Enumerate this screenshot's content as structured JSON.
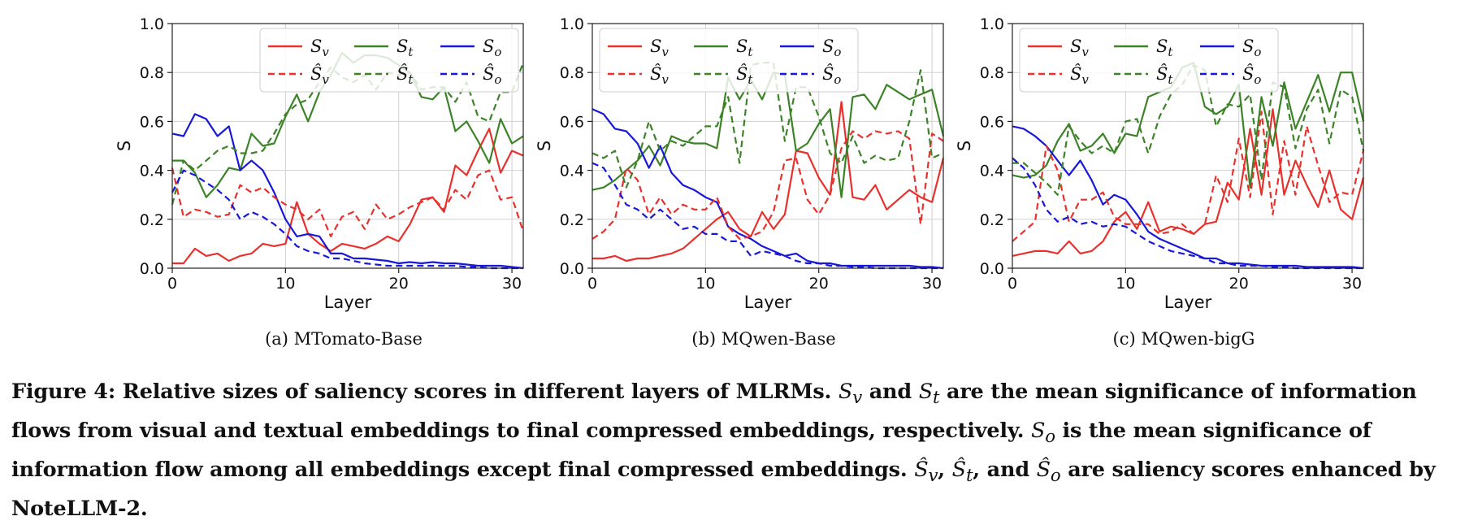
{
  "colors": {
    "v": "#e8312c",
    "t": "#3c8328",
    "o": "#1818d6"
  },
  "chart_data": [
    {
      "type": "line",
      "subcaption": "(a)  MTomato-Base",
      "xlabel": "Layer",
      "ylabel": "S",
      "xlim": [
        0,
        31
      ],
      "ylim": [
        0.0,
        1.0
      ],
      "xticks": [
        0,
        10,
        20,
        30
      ],
      "yticks": [
        "0.0",
        "0.2",
        "0.4",
        "0.6",
        "0.8",
        "1.0"
      ],
      "legend": [
        "S_v",
        "S_t",
        "S_o",
        "Ŝ_v",
        "Ŝ_t",
        "Ŝ_o"
      ],
      "series": [
        {
          "key": "v",
          "dashed": false,
          "name": "Sv",
          "values": [
            0.02,
            0.02,
            0.08,
            0.05,
            0.06,
            0.03,
            0.05,
            0.06,
            0.1,
            0.09,
            0.1,
            0.27,
            0.14,
            0.1,
            0.07,
            0.1,
            0.09,
            0.08,
            0.1,
            0.13,
            0.11,
            0.18,
            0.28,
            0.29,
            0.23,
            0.42,
            0.38,
            0.48,
            0.57,
            0.39,
            0.48,
            0.46
          ]
        },
        {
          "key": "t",
          "dashed": false,
          "name": "St",
          "values": [
            0.44,
            0.44,
            0.39,
            0.29,
            0.34,
            0.41,
            0.4,
            0.55,
            0.5,
            0.51,
            0.62,
            0.71,
            0.6,
            0.72,
            0.79,
            0.88,
            0.84,
            0.87,
            0.87,
            0.86,
            0.83,
            0.8,
            0.7,
            0.69,
            0.74,
            0.56,
            0.6,
            0.52,
            0.43,
            0.61,
            0.51,
            0.54
          ]
        },
        {
          "key": "o",
          "dashed": false,
          "name": "So",
          "values": [
            0.55,
            0.54,
            0.63,
            0.61,
            0.54,
            0.58,
            0.4,
            0.44,
            0.4,
            0.31,
            0.2,
            0.13,
            0.14,
            0.13,
            0.06,
            0.06,
            0.04,
            0.04,
            0.035,
            0.03,
            0.02,
            0.025,
            0.02,
            0.025,
            0.02,
            0.02,
            0.015,
            0.01,
            0.01,
            0.01,
            0.005,
            0.0
          ]
        },
        {
          "key": "v",
          "dashed": true,
          "name": "Ŝv",
          "values": [
            0.41,
            0.21,
            0.24,
            0.23,
            0.21,
            0.22,
            0.34,
            0.31,
            0.33,
            0.29,
            0.26,
            0.24,
            0.2,
            0.24,
            0.13,
            0.21,
            0.23,
            0.16,
            0.26,
            0.2,
            0.22,
            0.25,
            0.27,
            0.29,
            0.24,
            0.32,
            0.28,
            0.38,
            0.4,
            0.28,
            0.29,
            0.15
          ]
        },
        {
          "key": "t",
          "dashed": true,
          "name": "Ŝt",
          "values": [
            0.26,
            0.44,
            0.4,
            0.44,
            0.48,
            0.5,
            0.47,
            0.47,
            0.48,
            0.55,
            0.63,
            0.67,
            0.69,
            0.76,
            0.82,
            0.78,
            0.76,
            0.79,
            0.73,
            0.8,
            0.79,
            0.8,
            0.73,
            0.74,
            0.74,
            0.68,
            0.76,
            0.62,
            0.6,
            0.72,
            0.72,
            0.84
          ]
        },
        {
          "key": "o",
          "dashed": true,
          "name": "Ŝo",
          "values": [
            0.31,
            0.4,
            0.38,
            0.35,
            0.32,
            0.28,
            0.2,
            0.23,
            0.21,
            0.18,
            0.14,
            0.09,
            0.07,
            0.06,
            0.04,
            0.04,
            0.03,
            0.02,
            0.015,
            0.01,
            0.01,
            0.01,
            0.01,
            0.01,
            0.01,
            0.01,
            0.005,
            0.005,
            0.0,
            0.0,
            0.0,
            0.0
          ]
        }
      ]
    },
    {
      "type": "line",
      "subcaption": "(b)  MQwen-Base",
      "xlabel": "Layer",
      "ylabel": "S",
      "xlim": [
        0,
        31
      ],
      "ylim": [
        0.0,
        1.0
      ],
      "xticks": [
        0,
        10,
        20,
        30
      ],
      "yticks": [
        "0.0",
        "0.2",
        "0.4",
        "0.6",
        "0.8",
        "1.0"
      ],
      "legend": [
        "S_v",
        "S_t",
        "S_o",
        "Ŝ_v",
        "Ŝ_t",
        "Ŝ_o"
      ],
      "series": [
        {
          "key": "v",
          "dashed": false,
          "name": "Sv",
          "values": [
            0.04,
            0.04,
            0.05,
            0.03,
            0.04,
            0.04,
            0.05,
            0.06,
            0.08,
            0.12,
            0.16,
            0.2,
            0.23,
            0.16,
            0.13,
            0.23,
            0.16,
            0.22,
            0.48,
            0.47,
            0.37,
            0.3,
            0.68,
            0.29,
            0.28,
            0.34,
            0.24,
            0.28,
            0.32,
            0.29,
            0.27,
            0.45
          ]
        },
        {
          "key": "t",
          "dashed": false,
          "name": "St",
          "values": [
            0.32,
            0.33,
            0.36,
            0.4,
            0.44,
            0.5,
            0.42,
            0.54,
            0.52,
            0.51,
            0.51,
            0.49,
            0.78,
            0.69,
            0.77,
            0.69,
            0.8,
            0.79,
            0.48,
            0.51,
            0.59,
            0.65,
            0.29,
            0.7,
            0.71,
            0.65,
            0.75,
            0.72,
            0.69,
            0.71,
            0.73,
            0.54
          ]
        },
        {
          "key": "o",
          "dashed": false,
          "name": "So",
          "values": [
            0.65,
            0.63,
            0.57,
            0.56,
            0.51,
            0.41,
            0.5,
            0.39,
            0.34,
            0.32,
            0.29,
            0.27,
            0.17,
            0.14,
            0.12,
            0.09,
            0.07,
            0.05,
            0.06,
            0.03,
            0.02,
            0.02,
            0.01,
            0.01,
            0.01,
            0.01,
            0.01,
            0.01,
            0.01,
            0.005,
            0.005,
            0.0
          ]
        },
        {
          "key": "v",
          "dashed": true,
          "name": "Ŝv",
          "values": [
            0.12,
            0.15,
            0.2,
            0.41,
            0.36,
            0.22,
            0.29,
            0.22,
            0.26,
            0.24,
            0.24,
            0.29,
            0.17,
            0.12,
            0.13,
            0.15,
            0.23,
            0.44,
            0.45,
            0.28,
            0.22,
            0.3,
            0.49,
            0.56,
            0.53,
            0.56,
            0.55,
            0.56,
            0.53,
            0.18,
            0.55,
            0.52
          ]
        },
        {
          "key": "t",
          "dashed": true,
          "name": "Ŝt",
          "values": [
            0.47,
            0.45,
            0.48,
            0.33,
            0.44,
            0.6,
            0.48,
            0.52,
            0.5,
            0.54,
            0.58,
            0.58,
            0.7,
            0.43,
            0.83,
            0.84,
            0.84,
            0.52,
            0.74,
            0.74,
            0.62,
            0.47,
            0.43,
            0.54,
            0.43,
            0.46,
            0.44,
            0.45,
            0.6,
            0.81,
            0.45,
            0.47
          ]
        },
        {
          "key": "o",
          "dashed": true,
          "name": "Ŝo",
          "values": [
            0.43,
            0.41,
            0.34,
            0.26,
            0.24,
            0.2,
            0.24,
            0.2,
            0.16,
            0.17,
            0.14,
            0.14,
            0.11,
            0.11,
            0.05,
            0.07,
            0.06,
            0.05,
            0.03,
            0.02,
            0.02,
            0.01,
            0.01,
            0.005,
            0.005,
            0.0,
            0.0,
            0.0,
            0.0,
            0.0,
            0.0,
            0.0
          ]
        }
      ]
    },
    {
      "type": "line",
      "subcaption": "(c)  MQwen-bigG",
      "xlabel": "Layer",
      "ylabel": "S",
      "xlim": [
        0,
        31
      ],
      "ylim": [
        0.0,
        1.0
      ],
      "xticks": [
        0,
        10,
        20,
        30
      ],
      "yticks": [
        "0.0",
        "0.2",
        "0.4",
        "0.6",
        "0.8",
        "1.0"
      ],
      "legend": [
        "S_v",
        "S_t",
        "S_o",
        "Ŝ_v",
        "Ŝ_t",
        "Ŝ_o"
      ],
      "series": [
        {
          "key": "v",
          "dashed": false,
          "name": "Sv",
          "values": [
            0.05,
            0.06,
            0.07,
            0.07,
            0.06,
            0.11,
            0.06,
            0.07,
            0.11,
            0.19,
            0.23,
            0.16,
            0.27,
            0.15,
            0.17,
            0.16,
            0.14,
            0.18,
            0.19,
            0.35,
            0.28,
            0.57,
            0.3,
            0.65,
            0.3,
            0.44,
            0.34,
            0.25,
            0.4,
            0.24,
            0.2,
            0.37
          ]
        },
        {
          "key": "t",
          "dashed": false,
          "name": "St",
          "values": [
            0.38,
            0.37,
            0.38,
            0.42,
            0.52,
            0.59,
            0.48,
            0.5,
            0.55,
            0.47,
            0.55,
            0.54,
            0.7,
            0.72,
            0.74,
            0.82,
            0.84,
            0.66,
            0.63,
            0.66,
            0.75,
            0.33,
            0.7,
            0.5,
            0.76,
            0.57,
            0.68,
            0.79,
            0.64,
            0.8,
            0.8,
            0.6
          ]
        },
        {
          "key": "o",
          "dashed": false,
          "name": "So",
          "values": [
            0.58,
            0.57,
            0.54,
            0.5,
            0.44,
            0.38,
            0.44,
            0.36,
            0.26,
            0.3,
            0.28,
            0.22,
            0.15,
            0.12,
            0.1,
            0.08,
            0.06,
            0.04,
            0.04,
            0.02,
            0.02,
            0.015,
            0.01,
            0.01,
            0.01,
            0.01,
            0.005,
            0.005,
            0.005,
            0.005,
            0.005,
            0.0
          ]
        },
        {
          "key": "v",
          "dashed": true,
          "name": "Ŝv",
          "values": [
            0.11,
            0.15,
            0.19,
            0.5,
            0.4,
            0.19,
            0.28,
            0.28,
            0.31,
            0.21,
            0.18,
            0.18,
            0.18,
            0.14,
            0.15,
            0.18,
            0.14,
            0.18,
            0.38,
            0.27,
            0.53,
            0.29,
            0.64,
            0.22,
            0.52,
            0.3,
            0.58,
            0.42,
            0.27,
            0.31,
            0.3,
            0.48
          ]
        },
        {
          "key": "t",
          "dashed": true,
          "name": "Ŝt",
          "values": [
            0.43,
            0.43,
            0.39,
            0.35,
            0.3,
            0.58,
            0.52,
            0.47,
            0.5,
            0.47,
            0.6,
            0.61,
            0.47,
            0.62,
            0.71,
            0.75,
            0.83,
            0.81,
            0.58,
            0.67,
            0.66,
            0.71,
            0.36,
            0.76,
            0.74,
            0.49,
            0.65,
            0.73,
            0.51,
            0.73,
            0.7,
            0.48
          ]
        },
        {
          "key": "o",
          "dashed": true,
          "name": "Ŝo",
          "values": [
            0.45,
            0.41,
            0.34,
            0.24,
            0.19,
            0.21,
            0.18,
            0.19,
            0.17,
            0.18,
            0.17,
            0.14,
            0.11,
            0.09,
            0.07,
            0.06,
            0.05,
            0.04,
            0.02,
            0.02,
            0.01,
            0.01,
            0.01,
            0.005,
            0.005,
            0.0,
            0.0,
            0.0,
            0.0,
            0.0,
            0.0,
            0.0
          ]
        }
      ]
    }
  ],
  "caption": {
    "text1": "Figure 4: Relative sizes of saliency scores in different layers of MLRMs.",
    "sv": "S",
    "sv_sub": "v",
    "and1": "and",
    "st": "S",
    "st_sub": "t",
    "text2": "are the mean significance of information flows",
    "line2a": "from visual and textual embeddings to final compressed embeddings, respectively.",
    "so": "S",
    "so_sub": "o",
    "line2b": "is the mean significance of information",
    "line3a": "flow among all embeddings except final compressed embeddings.",
    "hsv": "Ŝ",
    "hsv_sub": "v",
    "comma1": ",",
    "hst": "Ŝ",
    "hst_sub": "t",
    "and2": ", and",
    "hso": "Ŝ",
    "hso_sub": "o",
    "line3b": "are saliency scores enhanced by NoteLLM-2."
  }
}
